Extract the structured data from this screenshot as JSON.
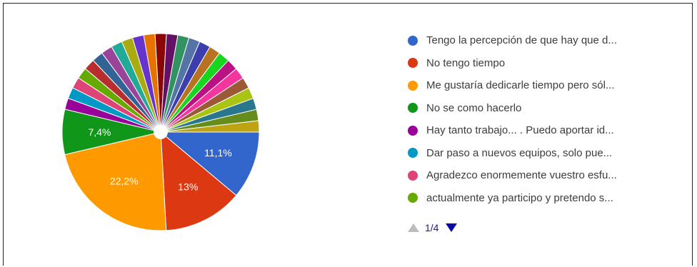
{
  "chart_data": {
    "type": "pie",
    "slices": [
      {
        "value": 11.1,
        "label": "11,1%",
        "color": "#3366cc"
      },
      {
        "value": 13.0,
        "label": "13%",
        "color": "#dc3912"
      },
      {
        "value": 22.2,
        "label": "22,2%",
        "color": "#ff9900"
      },
      {
        "value": 7.4,
        "label": "7,4%",
        "color": "#109618"
      },
      {
        "value": 1.85,
        "label": "",
        "color": "#990099"
      },
      {
        "value": 1.85,
        "label": "",
        "color": "#0099c6"
      },
      {
        "value": 1.85,
        "label": "",
        "color": "#dd4477"
      },
      {
        "value": 1.85,
        "label": "",
        "color": "#66aa00"
      },
      {
        "value": 1.85,
        "label": "",
        "color": "#b82e2e"
      },
      {
        "value": 1.85,
        "label": "",
        "color": "#316395"
      },
      {
        "value": 1.85,
        "label": "",
        "color": "#994499"
      },
      {
        "value": 1.85,
        "label": "",
        "color": "#22aa99"
      },
      {
        "value": 1.85,
        "label": "",
        "color": "#aaaa11"
      },
      {
        "value": 1.85,
        "label": "",
        "color": "#6633cc"
      },
      {
        "value": 1.85,
        "label": "",
        "color": "#e67300"
      },
      {
        "value": 1.85,
        "label": "",
        "color": "#8b0707"
      },
      {
        "value": 1.85,
        "label": "",
        "color": "#651067"
      },
      {
        "value": 1.85,
        "label": "",
        "color": "#329262"
      },
      {
        "value": 1.85,
        "label": "",
        "color": "#5574a6"
      },
      {
        "value": 1.85,
        "label": "",
        "color": "#3b3eac"
      },
      {
        "value": 1.85,
        "label": "",
        "color": "#b77322"
      },
      {
        "value": 1.85,
        "label": "",
        "color": "#16d620"
      },
      {
        "value": 1.85,
        "label": "",
        "color": "#b91383"
      },
      {
        "value": 1.85,
        "label": "",
        "color": "#f4359e"
      },
      {
        "value": 1.85,
        "label": "",
        "color": "#9c5935"
      },
      {
        "value": 1.85,
        "label": "",
        "color": "#a9c413"
      },
      {
        "value": 1.85,
        "label": "",
        "color": "#2a778d"
      },
      {
        "value": 1.85,
        "label": "",
        "color": "#668d1c"
      },
      {
        "value": 1.85,
        "label": "",
        "color": "#bea413"
      }
    ]
  },
  "legend": {
    "items": [
      {
        "label": "Tengo la percepción de que hay que d...",
        "color": "#3366cc"
      },
      {
        "label": "No tengo tiempo",
        "color": "#dc3912"
      },
      {
        "label": "Me gustaría dedicarle tiempo pero sól...",
        "color": "#ff9900"
      },
      {
        "label": "No se como hacerlo",
        "color": "#109618"
      },
      {
        "label": "Hay tanto trabajo... . Puedo aportar id...",
        "color": "#990099"
      },
      {
        "label": "Dar paso a nuevos equipos, solo pue...",
        "color": "#0099c6"
      },
      {
        "label": "Agradezco enormemente vuestro esfu...",
        "color": "#dd4477"
      },
      {
        "label": "actualmente ya participo y pretendo s...",
        "color": "#66aa00"
      }
    ]
  },
  "pager": {
    "text": "1/4"
  }
}
